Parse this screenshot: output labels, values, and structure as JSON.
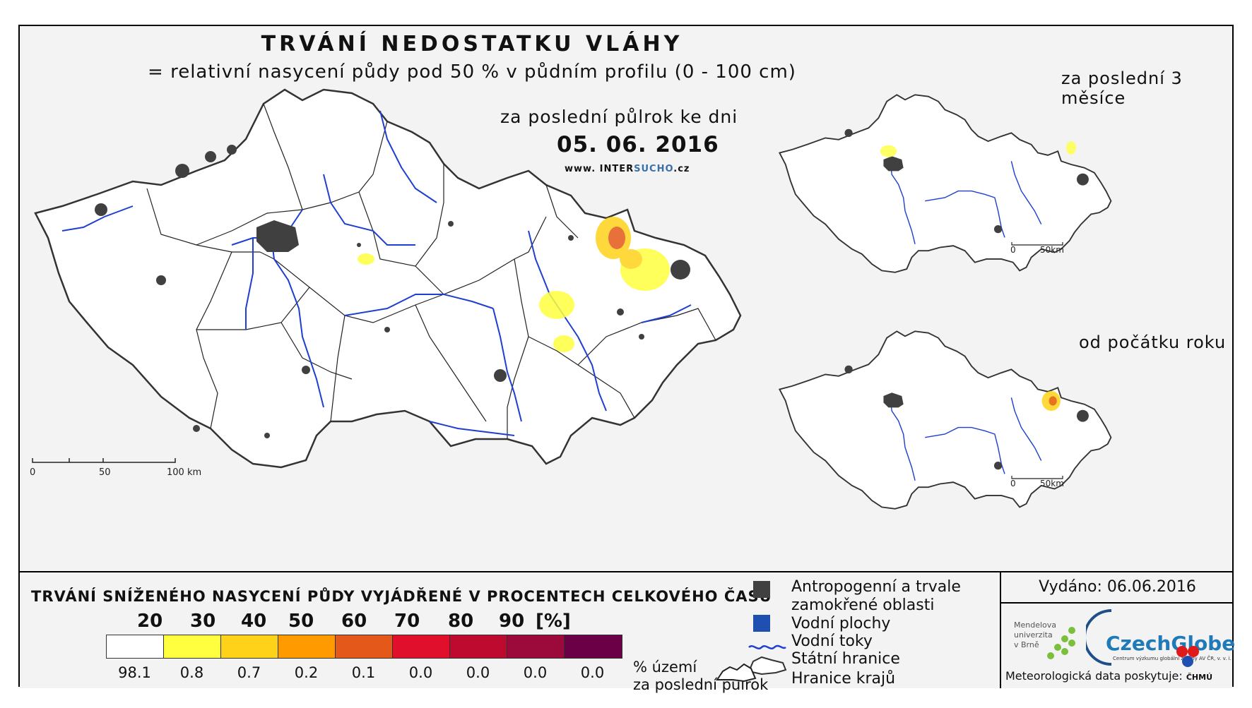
{
  "map": {
    "title": "TRVÁNÍ NEDOSTATKU VLÁHY",
    "subtitle": "= relativní nasycení půdy pod 50 % v půdním profilu (0 - 100 cm)",
    "period_label": "za poslední půlrok ke dni",
    "date": "05. 06. 2016",
    "website_prefix": "www. INTER",
    "website_highlight": "SUCHO",
    "website_suffix": ".cz",
    "scale_labels": [
      "0",
      "50",
      "100 km"
    ]
  },
  "inset_maps": [
    {
      "title": "za poslední 3 měsíce",
      "scale_labels": [
        "0",
        "50km"
      ]
    },
    {
      "title": "od počátku roku",
      "scale_labels": [
        "0",
        "50km"
      ]
    }
  ],
  "legend": {
    "title": "TRVÁNÍ SNÍŽENÉHO NASYCENÍ PŮDY VYJÁDŘENÉ V PROCENTECH CELKOVÉHO ČASU",
    "thresholds": [
      "20",
      "30",
      "40",
      "50",
      "60",
      "70",
      "80",
      "90",
      "[%]"
    ],
    "class_colors": [
      "#ffffff",
      "#ffff40",
      "#ffd21a",
      "#ff9a00",
      "#e4581a",
      "#e0102c",
      "#bd0a2e",
      "#9c0a3c",
      "#6b0046"
    ],
    "class_values": [
      "98.1",
      "0.8",
      "0.7",
      "0.2",
      "0.1",
      "0.0",
      "0.0",
      "0.0",
      "0.0"
    ],
    "values_note_line1": "% území",
    "values_note_line2": "za poslední půlrok"
  },
  "map_key": {
    "urban_label_line1": "Antropogenní a trvale",
    "urban_label_line2": "zamokřené oblasti",
    "water_bodies_label": "Vodní plochy",
    "rivers_label": "Vodní toky",
    "state_border_label": "Státní hranice",
    "region_border_label": "Hranice krajů",
    "colors": {
      "urban": "#404040",
      "water": "#1f4fb0",
      "river": "#1f3fd0"
    }
  },
  "issuer": {
    "issued_label": "Vydáno: 06.06.2016",
    "mendel_line1": "Mendelova",
    "mendel_line2": "univerzita",
    "mendel_line3": "v Brně",
    "czechglobe_text": "CzechGlobe",
    "czechglobe_subtext": "Centrum výzkumu globální změny AV ČR, v. v. i.",
    "meteo_label": "Meteorologická data poskytuje:",
    "chmu_text": "ČHMÚ"
  }
}
